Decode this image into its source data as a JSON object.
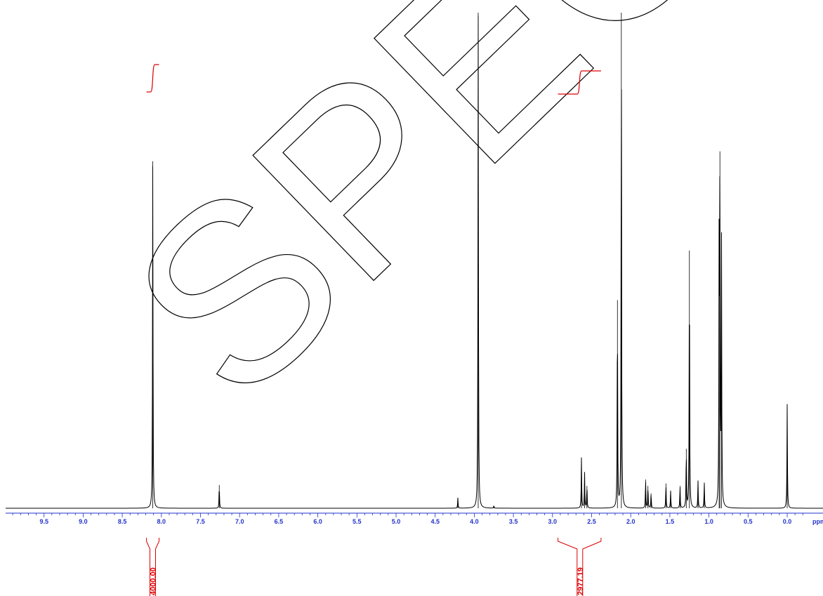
{
  "chart_data": {
    "type": "line",
    "title": "",
    "xlabel": "",
    "ylabel": "",
    "x_unit_label": "ppm",
    "xlim": [
      9.9,
      -0.25
    ],
    "x_reversed": true,
    "grid": false,
    "axis_color": "#2233cc",
    "spectrum_color": "#000000",
    "integral_color": "#dd0000",
    "major_ticks": [
      "9.5",
      "9.0",
      "8.5",
      "8.0",
      "7.5",
      "7.0",
      "6.5",
      "6.0",
      "5.5",
      "5.0",
      "4.5",
      "4.0",
      "3.5",
      "3.0",
      "2.5",
      "2.0",
      "1.5",
      "1.0",
      "0.5",
      "0.0"
    ],
    "minor_tick_step": 0.1,
    "series": [
      {
        "peaks": [
          {
            "x": 8.11,
            "y": 0.7
          },
          {
            "x": 7.26,
            "y": 0.047
          },
          {
            "x": 4.21,
            "y": 0.021
          },
          {
            "x": 3.95,
            "y": 1.0
          },
          {
            "x": 3.75,
            "y": 0.005
          },
          {
            "x": 2.63,
            "y": 0.102
          },
          {
            "x": 2.59,
            "y": 0.072
          },
          {
            "x": 2.56,
            "y": 0.045
          },
          {
            "x": 2.17,
            "y": 0.42
          },
          {
            "x": 2.12,
            "y": 1.0
          },
          {
            "x": 1.81,
            "y": 0.058
          },
          {
            "x": 1.78,
            "y": 0.045
          },
          {
            "x": 1.74,
            "y": 0.03
          },
          {
            "x": 1.55,
            "y": 0.05
          },
          {
            "x": 1.49,
            "y": 0.035
          },
          {
            "x": 1.37,
            "y": 0.045
          },
          {
            "x": 1.29,
            "y": 0.12
          },
          {
            "x": 1.25,
            "y": 0.52
          },
          {
            "x": 1.14,
            "y": 0.055
          },
          {
            "x": 1.06,
            "y": 0.052
          },
          {
            "x": 0.87,
            "y": 0.53
          },
          {
            "x": 0.86,
            "y": 0.72
          },
          {
            "x": 0.84,
            "y": 0.55
          },
          {
            "x": 0.0,
            "y": 0.21
          }
        ]
      }
    ],
    "integrals": [
      {
        "from": 8.19,
        "to": 8.03,
        "value": "4000.00",
        "label_x": 8.11
      },
      {
        "from": 2.93,
        "to": 2.38,
        "value": "2977.19",
        "label_x": 2.65
      }
    ],
    "watermark": "SPECTRA"
  }
}
